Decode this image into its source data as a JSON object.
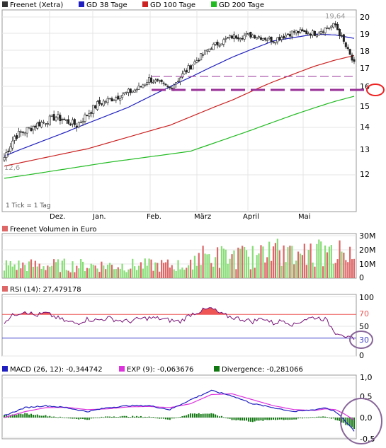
{
  "main_panel": {
    "legend": [
      {
        "label": "Freenet (Xetra)",
        "color": "#333333"
      },
      {
        "label": "GD 38 Tage",
        "color": "#1f1fbf"
      },
      {
        "label": "GD 100 Tage",
        "color": "#cc2222"
      },
      {
        "label": "GD 200 Tage",
        "color": "#22bb22"
      }
    ],
    "yticks": [
      "20",
      "19",
      "18",
      "17",
      "16",
      "15",
      "14",
      "13",
      "12"
    ],
    "xticks": [
      "Dez.",
      "Jan.",
      "Feb.",
      "März",
      "April",
      "Mai"
    ],
    "high_label": "19,64",
    "low_label": "12,6",
    "tick_note": "1 Tick = 1 Tag",
    "annotation_color": "#993399",
    "circle_color": "#ee2222"
  },
  "volume_panel": {
    "title": "Freenet Volumen in Euro",
    "yticks": [
      "30M",
      "20M",
      "10M",
      "0"
    ],
    "up_color": "#88dd77",
    "down_color": "#dd6666"
  },
  "rsi_panel": {
    "title": "RSI (14): 27,479178",
    "yticks": [
      "100",
      "70",
      "50",
      "30",
      "0"
    ],
    "line_color": "#771177",
    "fill_color": "#ee5555",
    "circle_color": "#886699"
  },
  "macd_panel": {
    "legend": [
      {
        "label": "MACD (26, 12): -0,344742",
        "color": "#1f1fbf"
      },
      {
        "label": "EXP (9): -0,063676",
        "color": "#dd33dd"
      },
      {
        "label": "Divergence: -0,281066",
        "color": "#117711"
      }
    ],
    "yticks": [
      "1,0",
      "0,5",
      "0,0",
      "-0,5"
    ],
    "circle_color": "#886699"
  },
  "chart_data": {
    "type": "line",
    "title": "",
    "x_range": [
      "2007-11-08",
      "2007-05-31"
    ],
    "xticks": [
      "Dez.",
      "Jan.",
      "Feb.",
      "März",
      "April",
      "Mai"
    ],
    "price": {
      "series_name": "Freenet (Xetra)",
      "type": "candlestick",
      "ylim": [
        11.3,
        20.3
      ],
      "low": 12.6,
      "high": 19.64,
      "anchors_close": [
        [
          0,
          12.7
        ],
        [
          5,
          13.6
        ],
        [
          15,
          14.1
        ],
        [
          25,
          14.5
        ],
        [
          35,
          14.1
        ],
        [
          45,
          15.1
        ],
        [
          55,
          15.5
        ],
        [
          65,
          15.9
        ],
        [
          70,
          16.4
        ],
        [
          80,
          15.9
        ],
        [
          90,
          17.1
        ],
        [
          100,
          18.2
        ],
        [
          110,
          18.8
        ],
        [
          120,
          18.9
        ],
        [
          130,
          18.6
        ],
        [
          140,
          19.1
        ],
        [
          150,
          19.0
        ],
        [
          155,
          19.3
        ],
        [
          160,
          19.5
        ],
        [
          165,
          18.2
        ],
        [
          169,
          17.2
        ]
      ],
      "ma38": [
        [
          0,
          12.75
        ],
        [
          30,
          13.8
        ],
        [
          60,
          14.95
        ],
        [
          90,
          16.5
        ],
        [
          110,
          17.6
        ],
        [
          130,
          18.55
        ],
        [
          150,
          18.95
        ],
        [
          160,
          18.9
        ],
        [
          169,
          18.7
        ]
      ],
      "ma100": [
        [
          0,
          12.35
        ],
        [
          40,
          13.05
        ],
        [
          80,
          14.1
        ],
        [
          110,
          15.3
        ],
        [
          130,
          16.25
        ],
        [
          150,
          17.1
        ],
        [
          160,
          17.45
        ],
        [
          169,
          17.7
        ]
      ],
      "ma200": [
        [
          0,
          11.85
        ],
        [
          50,
          12.5
        ],
        [
          90,
          12.95
        ],
        [
          120,
          13.9
        ],
        [
          140,
          14.6
        ],
        [
          160,
          15.25
        ],
        [
          169,
          15.5
        ]
      ],
      "horizontal_lines": [
        16.47,
        15.82
      ]
    },
    "volume": {
      "series_name": "Freenet Volumen in Euro",
      "type": "bar",
      "ylim": [
        0,
        30000000
      ],
      "unit": "Euro"
    },
    "rsi": {
      "series_name": "RSI (14)",
      "value": 27.479178,
      "ylim": [
        0,
        100
      ],
      "levels": [
        70,
        30
      ],
      "anchors": [
        [
          0,
          58
        ],
        [
          5,
          70
        ],
        [
          10,
          76
        ],
        [
          15,
          68
        ],
        [
          20,
          72
        ],
        [
          25,
          65
        ],
        [
          30,
          58
        ],
        [
          35,
          55
        ],
        [
          40,
          62
        ],
        [
          45,
          60
        ],
        [
          50,
          64
        ],
        [
          55,
          60
        ],
        [
          60,
          58
        ],
        [
          65,
          62
        ],
        [
          70,
          64
        ],
        [
          75,
          63
        ],
        [
          80,
          60
        ],
        [
          85,
          58
        ],
        [
          90,
          70
        ],
        [
          95,
          76
        ],
        [
          100,
          80
        ],
        [
          105,
          70
        ],
        [
          110,
          65
        ],
        [
          115,
          62
        ],
        [
          120,
          58
        ],
        [
          125,
          64
        ],
        [
          130,
          55
        ],
        [
          135,
          60
        ],
        [
          140,
          52
        ],
        [
          145,
          62
        ],
        [
          150,
          65
        ],
        [
          155,
          62
        ],
        [
          160,
          40
        ],
        [
          163,
          38
        ],
        [
          166,
          30
        ],
        [
          169,
          27.5
        ]
      ]
    },
    "macd": {
      "ylim": [
        -0.6,
        1.0
      ],
      "series": [
        {
          "name": "MACD (26, 12)",
          "last": -0.344742,
          "anchors": [
            [
              0,
              0.05
            ],
            [
              10,
              0.25
            ],
            [
              20,
              0.3
            ],
            [
              30,
              0.25
            ],
            [
              40,
              0.15
            ],
            [
              50,
              0.25
            ],
            [
              60,
              0.3
            ],
            [
              70,
              0.3
            ],
            [
              80,
              0.2
            ],
            [
              90,
              0.45
            ],
            [
              100,
              0.68
            ],
            [
              110,
              0.55
            ],
            [
              120,
              0.35
            ],
            [
              130,
              0.25
            ],
            [
              140,
              0.15
            ],
            [
              150,
              0.2
            ],
            [
              155,
              0.25
            ],
            [
              160,
              0.15
            ],
            [
              164,
              -0.05
            ],
            [
              169,
              -0.34
            ]
          ]
        },
        {
          "name": "EXP (9)",
          "last": -0.063676,
          "anchors": [
            [
              0,
              0.0
            ],
            [
              10,
              0.15
            ],
            [
              20,
              0.25
            ],
            [
              30,
              0.26
            ],
            [
              40,
              0.2
            ],
            [
              50,
              0.22
            ],
            [
              60,
              0.27
            ],
            [
              70,
              0.28
            ],
            [
              80,
              0.25
            ],
            [
              90,
              0.35
            ],
            [
              100,
              0.58
            ],
            [
              110,
              0.6
            ],
            [
              120,
              0.45
            ],
            [
              130,
              0.3
            ],
            [
              140,
              0.2
            ],
            [
              150,
              0.18
            ],
            [
              155,
              0.22
            ],
            [
              160,
              0.2
            ],
            [
              164,
              0.1
            ],
            [
              169,
              -0.06
            ]
          ]
        },
        {
          "name": "Divergence",
          "last": -0.281066,
          "type": "bar"
        }
      ]
    }
  }
}
